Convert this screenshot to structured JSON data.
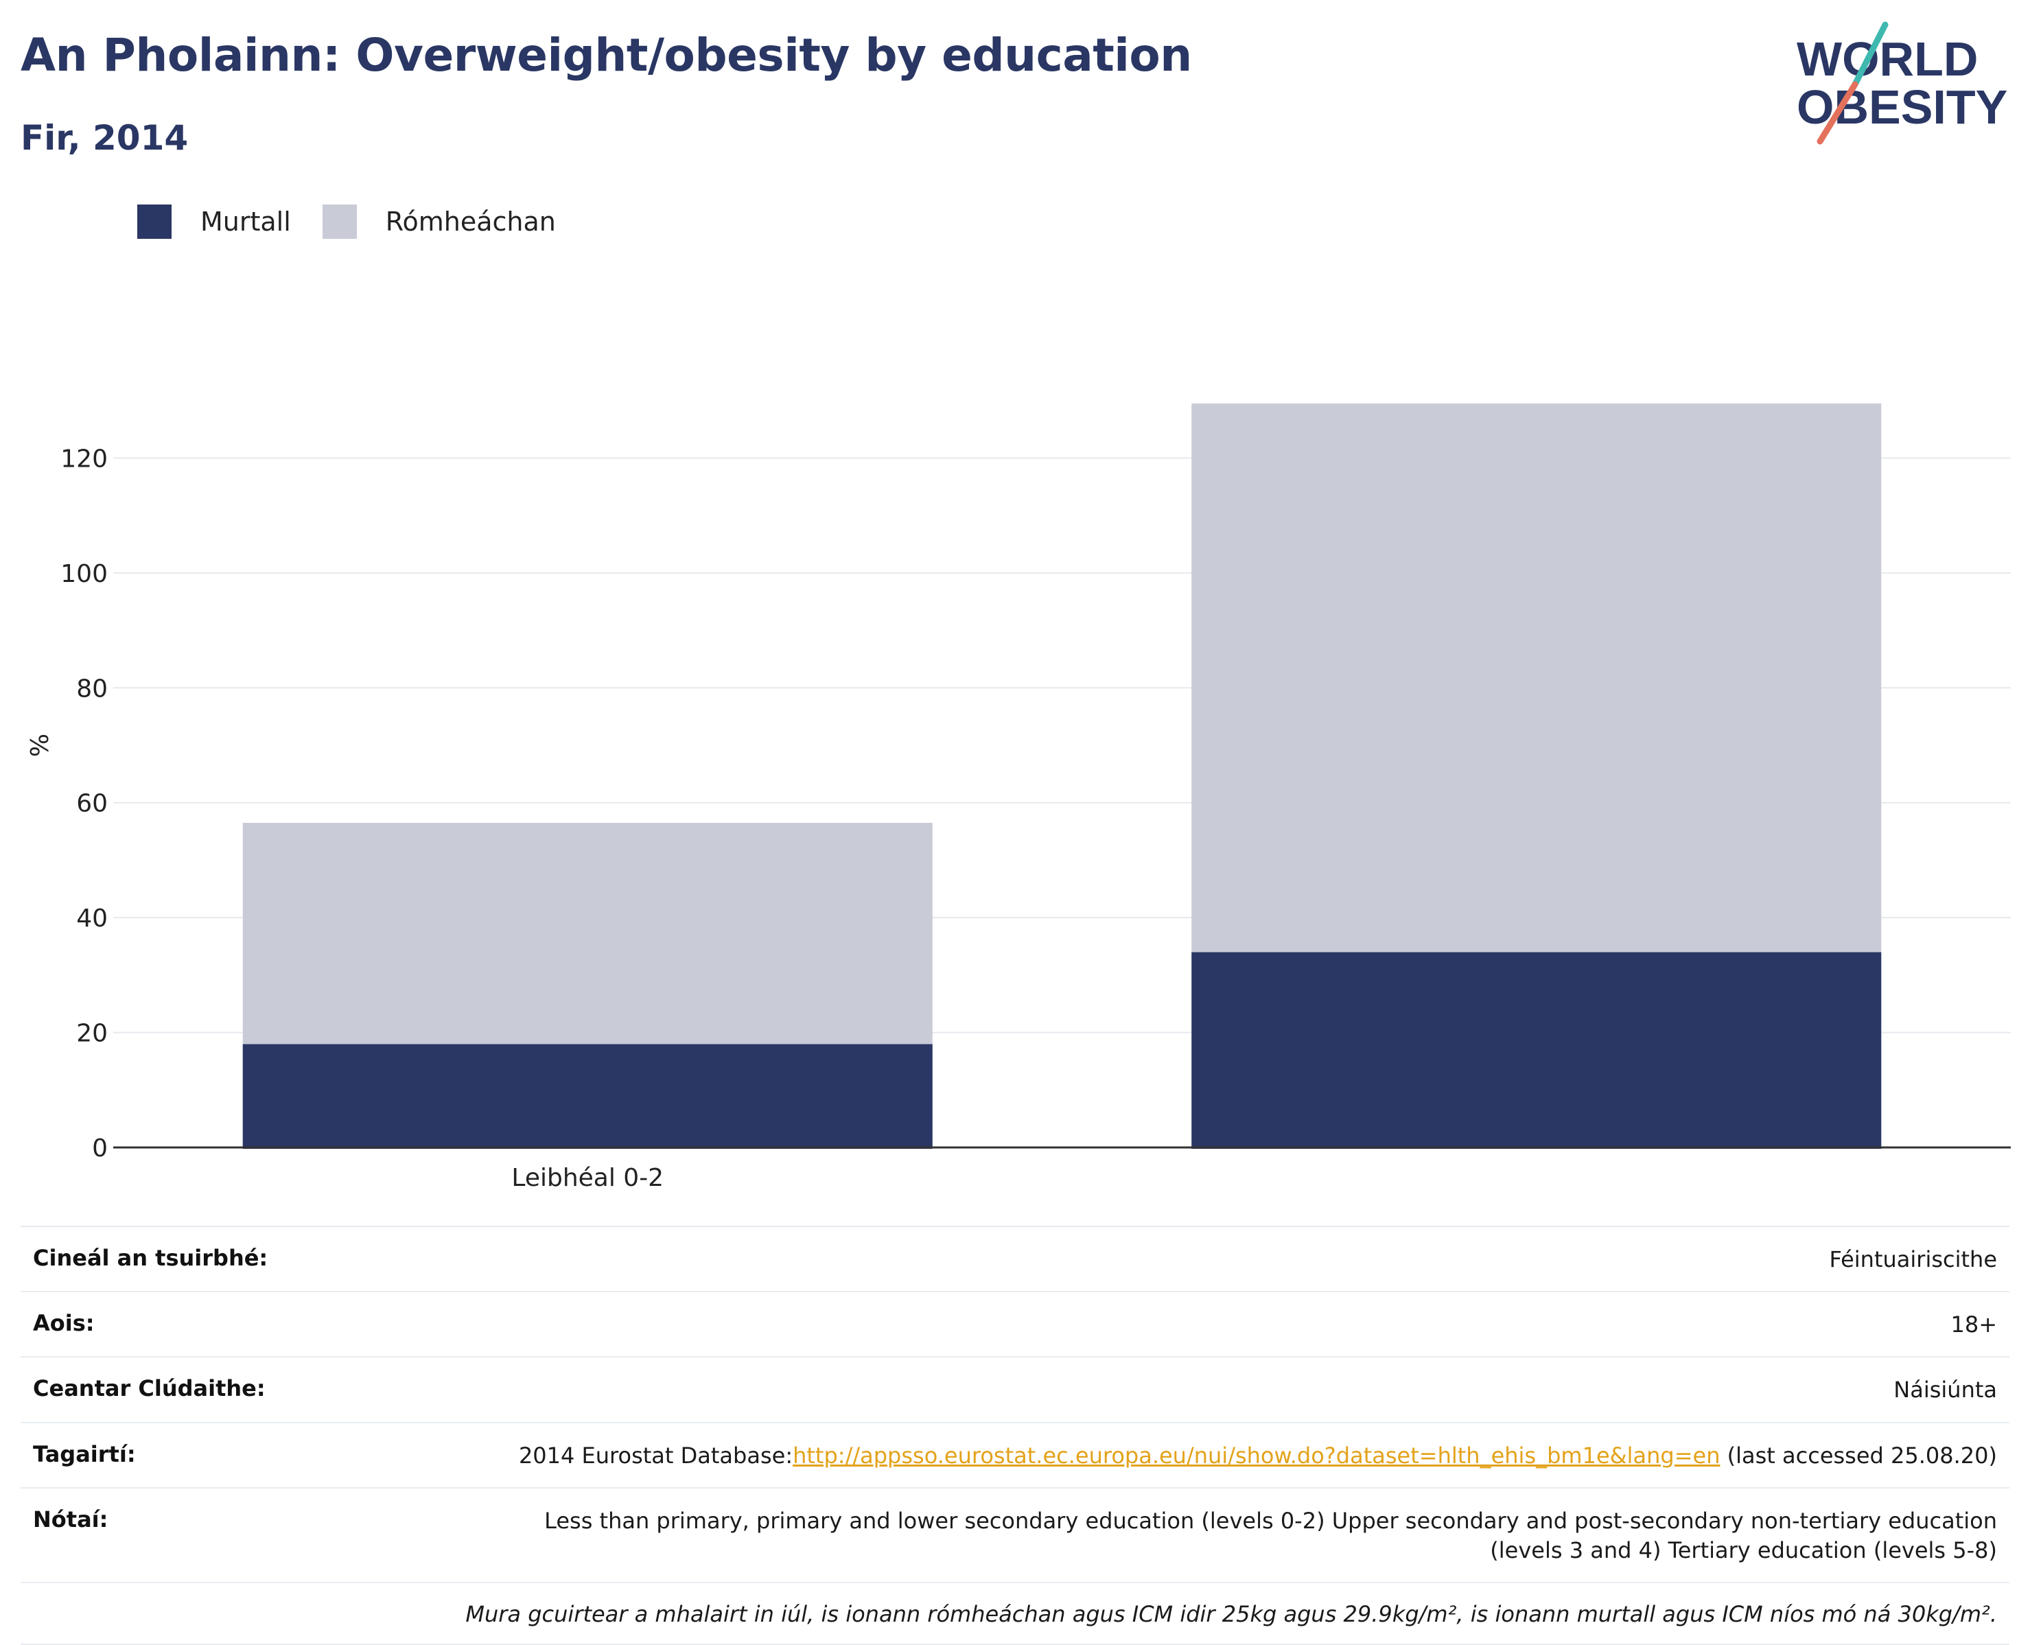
{
  "header": {
    "title": "An Pholainn: Overweight/obesity by education",
    "subtitle": "Fir, 2014"
  },
  "logo": {
    "line1": "WORLD",
    "line2": "OBESITY"
  },
  "colors": {
    "obese": "#2a3764",
    "overweight": "#c9cbd7",
    "title": "#2a3764",
    "link": "#e3a21a",
    "logo_teal": "#3fb8b0",
    "logo_coral": "#e4715c"
  },
  "chart_data": {
    "type": "bar",
    "stacked": true,
    "categories": [
      "Leibhéal 0-2",
      ""
    ],
    "series": [
      {
        "name": "Murtall",
        "values": [
          18,
          34
        ]
      },
      {
        "name": "Rómheáchan",
        "values": [
          38.5,
          95.5
        ]
      }
    ],
    "ylabel": "%",
    "xlabel": "",
    "ylim": [
      0,
      140
    ],
    "yticks": [
      0,
      20,
      40,
      60,
      80,
      100,
      120
    ],
    "grid": true,
    "legend_position": "top-left"
  },
  "info": {
    "rows": [
      {
        "key": "Cineál an tsuirbhé:",
        "value": "Féintuairiscithe"
      },
      {
        "key": "Aois:",
        "value": "18+"
      },
      {
        "key": "Ceantar Clúdaithe:",
        "value": "Náisiúnta"
      }
    ],
    "references": {
      "key": "Tagairtí:",
      "prefix": "2014 Eurostat Database:",
      "link": "http://appsso.eurostat.ec.europa.eu/nui/show.do?dataset=hlth_ehis_bm1e&lang=en",
      "suffix": " (last accessed 25.08.20)"
    },
    "notes": {
      "key": "Nótaí:",
      "line1": "Less than primary, primary and lower secondary education (levels 0-2) Upper secondary and post-secondary non-tertiary education",
      "line2": "(levels 3 and 4) Tertiary education (levels 5-8)"
    },
    "footnote": "Mura gcuirtear a mhalairt in iúl, is ionann rómheáchan agus ICM idir 25kg agus 29.9kg/m², is ionann murtall agus ICM níos mó ná 30kg/m²."
  }
}
